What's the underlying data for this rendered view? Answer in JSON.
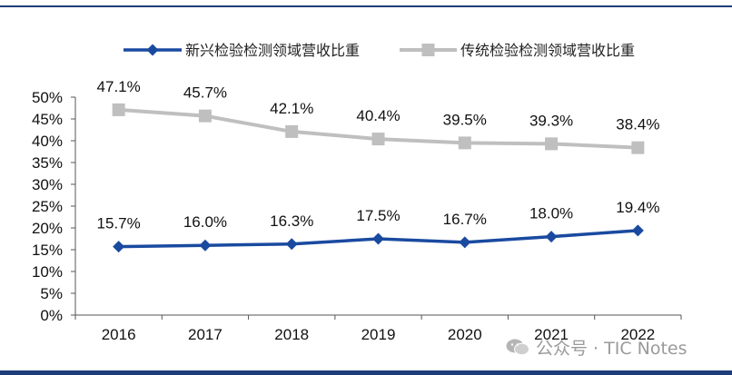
{
  "colors": {
    "emerging": "#1a4aa0",
    "traditional": "#bfbfbf",
    "border": "#1f3d7a",
    "watermark": "#9a9a9a"
  },
  "watermark": {
    "text": "公众号 · TIC Notes",
    "icon": "wechat-icon"
  },
  "chart_data": {
    "type": "line",
    "title": "",
    "xlabel": "",
    "ylabel": "",
    "ylim": [
      0,
      50
    ],
    "yticks": [
      "0%",
      "5%",
      "10%",
      "15%",
      "20%",
      "25%",
      "30%",
      "35%",
      "40%",
      "45%",
      "50%"
    ],
    "categories": [
      "2016",
      "2017",
      "2018",
      "2019",
      "2020",
      "2021",
      "2022"
    ],
    "legend_position": "top",
    "series": [
      {
        "name": "新兴检验检测领域营收比重",
        "marker": "diamond",
        "values": [
          15.7,
          16.0,
          16.3,
          17.5,
          16.7,
          18.0,
          19.4
        ],
        "labels": [
          "15.7%",
          "16.0%",
          "16.3%",
          "17.5%",
          "16.7%",
          "18.0%",
          "19.4%"
        ]
      },
      {
        "name": "传统检验检测领域营收比重",
        "marker": "square",
        "values": [
          47.1,
          45.7,
          42.1,
          40.4,
          39.5,
          39.3,
          38.4
        ],
        "labels": [
          "47.1%",
          "45.7%",
          "42.1%",
          "40.4%",
          "39.5%",
          "39.3%",
          "38.4%"
        ]
      }
    ]
  }
}
